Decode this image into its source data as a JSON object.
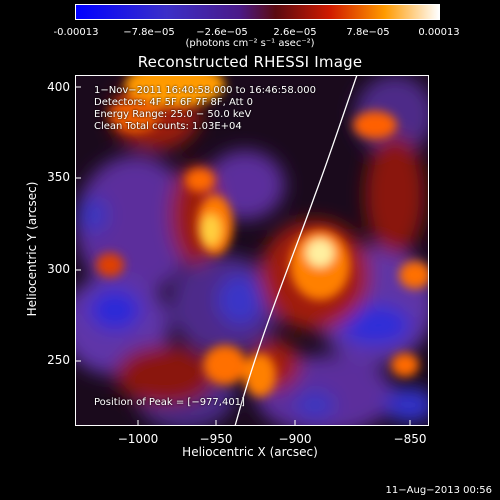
{
  "colorbar": {
    "ticks": [
      "-0.00013",
      "−7.8e−05",
      "−2.6e−05",
      "2.6e−05",
      "7.8e−05",
      "0.00013"
    ],
    "units": "(photons cm⁻² s⁻¹ asec⁻²)"
  },
  "title": "Reconstructed RHESSI Image",
  "info": {
    "time": "1−Nov−2011 16:40:58.000 to 16:46:58.000",
    "detectors": "Detectors: 4F 5F 6F 7F 8F, Att 0",
    "energy": "Energy Range: 25.0 − 50.0 keV",
    "clean": "Clean     Total counts: 1.03E+04",
    "peak": "Position of Peak = [−977,401]"
  },
  "axes": {
    "xlabel": "Heliocentric X (arcsec)",
    "ylabel": "Heliocentric Y (arcsec)",
    "xticks": [
      "−1000",
      "−950",
      "−900",
      "−850"
    ],
    "yticks": [
      "400",
      "350",
      "300",
      "250"
    ]
  },
  "footer_date": "11−Aug−2013 00:56",
  "colors": {
    "bg": "#000000",
    "frame": "#ffffff"
  }
}
